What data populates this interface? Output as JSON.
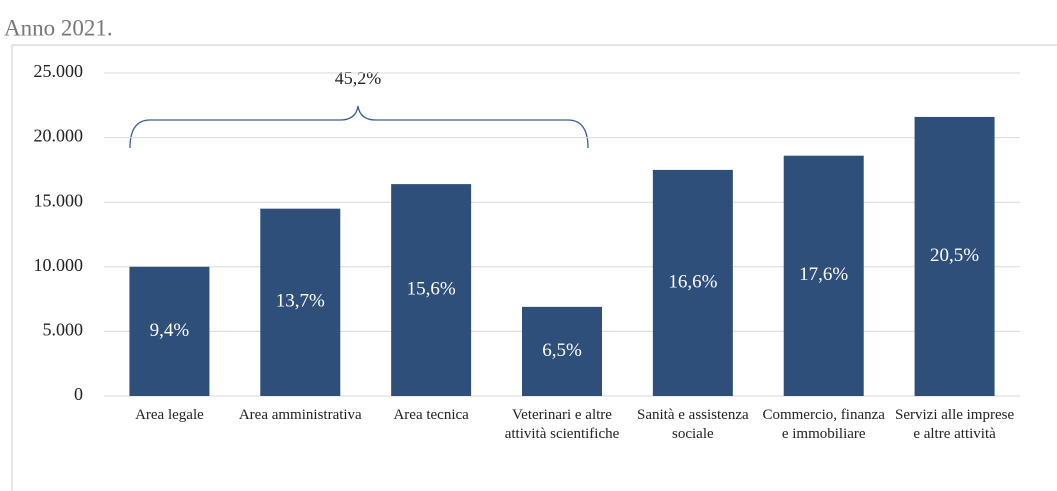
{
  "chart_data": {
    "type": "bar",
    "title": "Anno 2021.",
    "categories": [
      "Area legale",
      "Area amministrativa",
      "Area tecnica",
      "Veterinari e altre attività scientifiche",
      "Sanità e assistenza sociale",
      "Commercio, finanza e immobiliare",
      "Servizi alle imprese e altre attività"
    ],
    "values": [
      10000,
      14500,
      16400,
      6900,
      17500,
      18600,
      21600
    ],
    "share_labels": [
      "9,4%",
      "13,7%",
      "15,6%",
      "6,5%",
      "16,6%",
      "17,6%",
      "20,5%"
    ],
    "bracket_label": "45,2%",
    "color": "#2f4f7b",
    "ylim": [
      0,
      25000
    ],
    "yticks": [
      0,
      {
        "value": 5000,
        "label": "5.000"
      },
      {
        "value": 10000,
        "label": "10.000"
      },
      {
        "value": 15000,
        "label": "15.000"
      },
      {
        "value": 20000,
        "label": "20.000"
      },
      {
        "value": 25000,
        "label": "25.000"
      }
    ],
    "grid": true
  }
}
